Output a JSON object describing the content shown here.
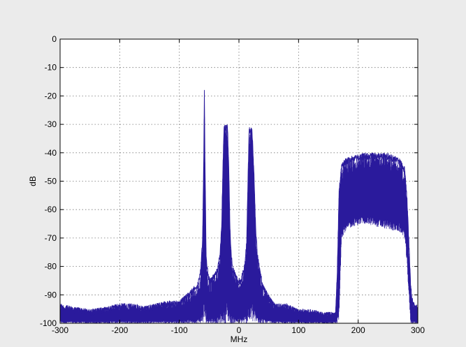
{
  "chart_data": {
    "type": "line",
    "title": "",
    "xlabel": "MHz",
    "ylabel": "dB",
    "xlim": [
      -300,
      300
    ],
    "ylim": [
      -100,
      0
    ],
    "x_ticks": [
      -300,
      -200,
      -100,
      0,
      100,
      200,
      300
    ],
    "y_ticks": [
      0,
      -10,
      -20,
      -30,
      -40,
      -50,
      -60,
      -70,
      -80,
      -90,
      -100
    ],
    "grid": true,
    "legend": "none",
    "colors": {
      "trace": "#2a1a9c",
      "figure_bg": "#ebebeb",
      "axes_bg": "#ffffff"
    },
    "series": [
      {
        "name": "",
        "style": "dense noisy spectrum trace",
        "envelope_upper": {
          "x": [
            -300,
            -280,
            -250,
            -220,
            -200,
            -180,
            -160,
            -140,
            -120,
            -100,
            -90,
            -80,
            -70,
            -65,
            -61,
            -59,
            -58,
            -57,
            -55,
            -52,
            -48,
            -44,
            -40,
            -36,
            -32,
            -29,
            -27,
            -25,
            -22,
            -19,
            -17,
            -15,
            -13,
            -10,
            -6,
            -2,
            2,
            6,
            10,
            13,
            15,
            17,
            19,
            22,
            25,
            28,
            31,
            35,
            40,
            50,
            60,
            80,
            100,
            120,
            140,
            155,
            162,
            165,
            168,
            172,
            178,
            190,
            210,
            230,
            250,
            270,
            278,
            282,
            285,
            288,
            290,
            292,
            295,
            300
          ],
          "y": [
            -93,
            -94,
            -95,
            -94,
            -93,
            -93,
            -94,
            -93,
            -92,
            -92,
            -90,
            -88,
            -86,
            -82,
            -70,
            -40,
            -16,
            -40,
            -75,
            -82,
            -84,
            -83,
            -82,
            -80,
            -75,
            -65,
            -45,
            -30,
            -30,
            -30,
            -45,
            -65,
            -75,
            -80,
            -82,
            -84,
            -84,
            -82,
            -78,
            -70,
            -50,
            -31,
            -31,
            -31,
            -45,
            -65,
            -75,
            -80,
            -86,
            -90,
            -93,
            -93,
            -95,
            -95,
            -96,
            -96,
            -96,
            -80,
            -52,
            -44,
            -42,
            -41,
            -40,
            -40,
            -40,
            -42,
            -45,
            -55,
            -70,
            -85,
            -90,
            -92,
            -93,
            -94
          ]
        },
        "envelope_lower": {
          "x": [
            -300,
            -280,
            -250,
            -220,
            -200,
            -180,
            -160,
            -140,
            -120,
            -100,
            -90,
            -80,
            -70,
            -65,
            -61,
            -59,
            -58,
            -57,
            -55,
            -52,
            -48,
            -44,
            -40,
            -36,
            -32,
            -29,
            -27,
            -25,
            -22,
            -19,
            -17,
            -15,
            -13,
            -10,
            -6,
            -2,
            2,
            6,
            10,
            13,
            15,
            17,
            19,
            22,
            25,
            28,
            31,
            35,
            40,
            50,
            60,
            80,
            100,
            120,
            140,
            155,
            162,
            165,
            168,
            172,
            178,
            190,
            210,
            230,
            250,
            270,
            278,
            282,
            285,
            288,
            290,
            292,
            295,
            300
          ],
          "y": [
            -100,
            -100,
            -100,
            -100,
            -100,
            -100,
            -100,
            -100,
            -100,
            -100,
            -100,
            -100,
            -100,
            -100,
            -100,
            -100,
            -100,
            -100,
            -100,
            -100,
            -100,
            -100,
            -100,
            -100,
            -100,
            -100,
            -100,
            -100,
            -100,
            -100,
            -100,
            -100,
            -100,
            -100,
            -100,
            -100,
            -100,
            -100,
            -100,
            -100,
            -100,
            -100,
            -100,
            -100,
            -100,
            -100,
            -100,
            -100,
            -100,
            -100,
            -100,
            -100,
            -100,
            -100,
            -100,
            -100,
            -100,
            -100,
            -100,
            -70,
            -68,
            -66,
            -65,
            -66,
            -67,
            -68,
            -70,
            -80,
            -90,
            -100,
            -100,
            -100,
            -100,
            -100
          ]
        }
      }
    ]
  }
}
